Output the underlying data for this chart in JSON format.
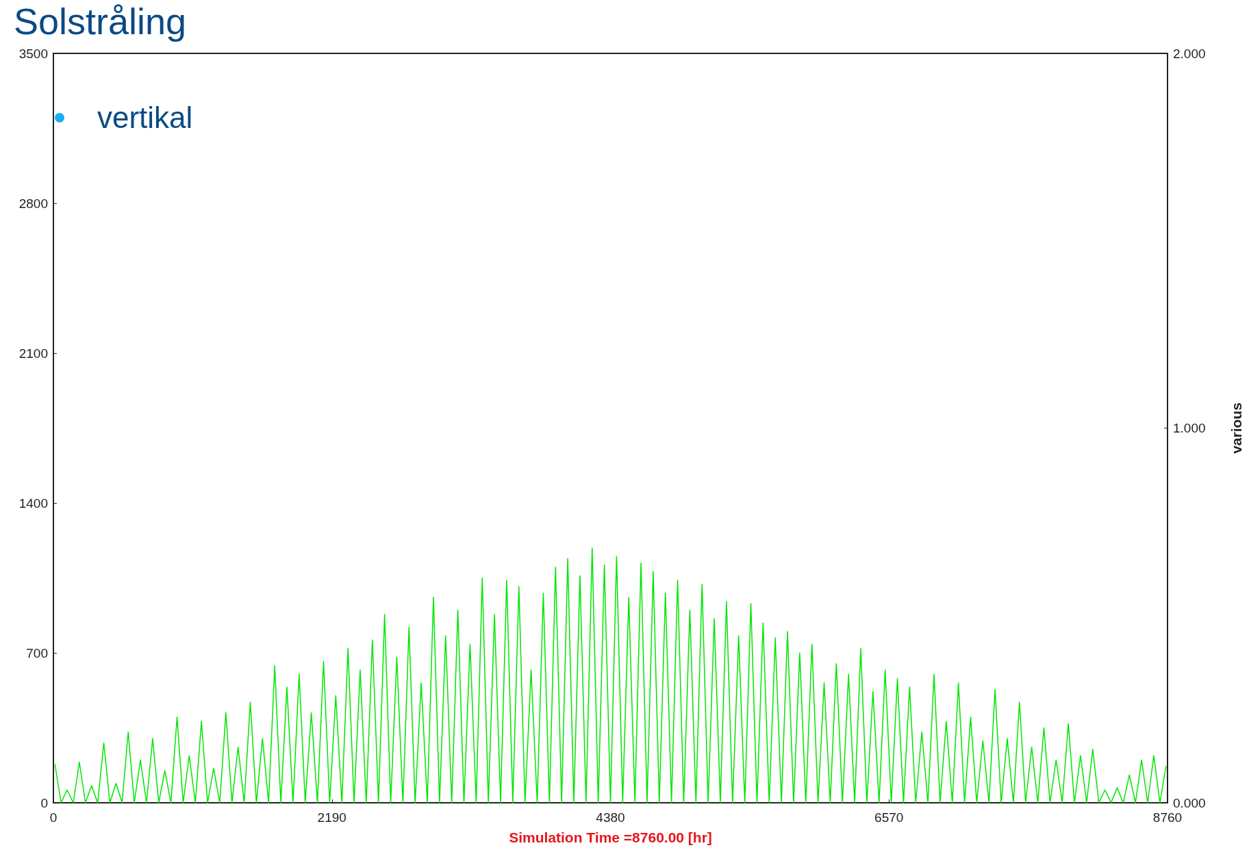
{
  "chart_data": {
    "type": "line",
    "title": "Solstråling",
    "annotations": [
      "vertikal"
    ],
    "xlabel": "Simulation Time =8760.00 [hr]",
    "y2label": "various",
    "x": [
      12,
      60,
      108,
      156,
      204,
      252,
      300,
      348,
      396,
      444,
      492,
      540,
      588,
      636,
      684,
      732,
      780,
      828,
      876,
      924,
      972,
      1020,
      1068,
      1116,
      1164,
      1212,
      1260,
      1308,
      1356,
      1404,
      1452,
      1500,
      1548,
      1596,
      1644,
      1692,
      1740,
      1788,
      1836,
      1884,
      1932,
      1980,
      2028,
      2076,
      2124,
      2172,
      2220,
      2268,
      2316,
      2364,
      2412,
      2460,
      2508,
      2556,
      2604,
      2652,
      2700,
      2748,
      2796,
      2844,
      2892,
      2940,
      2988,
      3036,
      3084,
      3132,
      3180,
      3228,
      3276,
      3324,
      3372,
      3420,
      3468,
      3516,
      3564,
      3612,
      3660,
      3708,
      3756,
      3804,
      3852,
      3900,
      3948,
      3996,
      4044,
      4092,
      4140,
      4188,
      4236,
      4284,
      4332,
      4380,
      4428,
      4476,
      4524,
      4572,
      4620,
      4668,
      4716,
      4764,
      4812,
      4860,
      4908,
      4956,
      5004,
      5052,
      5100,
      5148,
      5196,
      5244,
      5292,
      5340,
      5388,
      5436,
      5484,
      5532,
      5580,
      5628,
      5676,
      5724,
      5772,
      5820,
      5868,
      5916,
      5964,
      6012,
      6060,
      6108,
      6156,
      6204,
      6252,
      6300,
      6348,
      6396,
      6444,
      6492,
      6540,
      6588,
      6636,
      6684,
      6732,
      6780,
      6828,
      6876,
      6924,
      6972,
      7020,
      7068,
      7116,
      7164,
      7212,
      7260,
      7308,
      7356,
      7404,
      7452,
      7500,
      7548,
      7596,
      7644,
      7692,
      7740,
      7788,
      7836,
      7884,
      7932,
      7980,
      8028,
      8076,
      8124,
      8172,
      8220,
      8268,
      8316,
      8364,
      8412,
      8460,
      8508,
      8556,
      8604,
      8652,
      8700,
      8748
    ],
    "series": [
      {
        "color": "#00e600",
        "values": [
          180,
          0,
          60,
          0,
          190,
          0,
          80,
          0,
          280,
          0,
          90,
          0,
          330,
          0,
          200,
          0,
          300,
          0,
          150,
          0,
          400,
          0,
          220,
          0,
          380,
          0,
          160,
          0,
          420,
          0,
          260,
          0,
          470,
          0,
          300,
          0,
          640,
          0,
          540,
          0,
          600,
          0,
          420,
          0,
          660,
          0,
          500,
          0,
          720,
          0,
          620,
          0,
          760,
          0,
          880,
          0,
          680,
          0,
          820,
          0,
          560,
          0,
          960,
          0,
          780,
          0,
          900,
          0,
          740,
          0,
          1050,
          0,
          880,
          0,
          1040,
          0,
          1010,
          0,
          620,
          0,
          980,
          0,
          1100,
          0,
          1140,
          0,
          1060,
          0,
          1190,
          0,
          1110,
          0,
          1150,
          0,
          960,
          0,
          1120,
          0,
          1080,
          0,
          980,
          0,
          1040,
          0,
          900,
          0,
          1020,
          0,
          860,
          0,
          940,
          0,
          780,
          0,
          930,
          0,
          840,
          0,
          770,
          0,
          800,
          0,
          700,
          0,
          740,
          0,
          560,
          0,
          650,
          0,
          600,
          0,
          720,
          0,
          520,
          0,
          620,
          0,
          580,
          0,
          540,
          0,
          330,
          0,
          600,
          0,
          380,
          0,
          560,
          0,
          400,
          0,
          290,
          0,
          530,
          0,
          300,
          0,
          470,
          0,
          260,
          0,
          350,
          0,
          200,
          0,
          370,
          0,
          220,
          0,
          250,
          0,
          60,
          0,
          70,
          0,
          130,
          0,
          200,
          0,
          220,
          0,
          170
        ]
      }
    ],
    "xlim": [
      0,
      8760
    ],
    "xticks": [
      0,
      2190,
      4380,
      6570,
      8760
    ],
    "ylim": [
      0,
      3500
    ],
    "yticks": [
      0,
      700,
      1400,
      2100,
      2800,
      3500
    ],
    "y2lim": [
      0,
      2
    ],
    "y2ticks": [
      {
        "value": 0,
        "label": "0.000"
      },
      {
        "value": 1,
        "label": "1.000"
      },
      {
        "value": 2,
        "label": "2.000"
      }
    ],
    "marker": "none",
    "line_style": "solid"
  }
}
